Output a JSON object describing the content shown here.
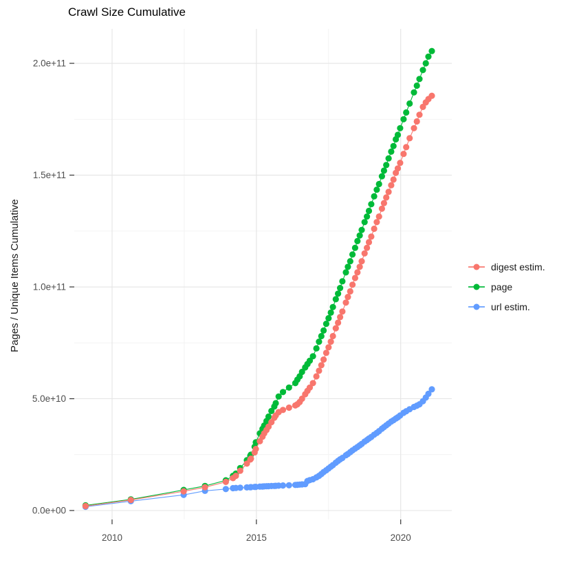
{
  "title": "Crawl Size Cumulative",
  "legend": {
    "items": [
      {
        "label": "digest estim."
      },
      {
        "label": "page"
      },
      {
        "label": "url estim."
      }
    ]
  },
  "chart_data": {
    "type": "scatter",
    "title": "Crawl Size Cumulative",
    "xlabel": "",
    "ylabel": "Pages / Unique Items Cumulative",
    "y_unit": "items; listed value × 1e9",
    "x_unit": "decimal year",
    "grid": true,
    "legend_position": "right",
    "xlim": [
      2008.69,
      2021.77
    ],
    "ylim_e9": [
      -4,
      215.4
    ],
    "x_ticks": {
      "values": [
        2010,
        2015,
        2020
      ],
      "labels": [
        "2010",
        "2015",
        "2020"
      ],
      "minor": [
        2012.5,
        2017.5
      ]
    },
    "y_ticks": {
      "values_e9": [
        0,
        50,
        100,
        150,
        200
      ],
      "labels": [
        "0.0e+00",
        "5.0e+10",
        "1.0e+11",
        "1.5e+11",
        "2.0e+11"
      ],
      "minor_e9": [
        25,
        75,
        125,
        175
      ]
    },
    "colors": {
      "grid_major": "#e4e4e4",
      "grid_minor": "#f2f2f2",
      "tick": "#333333",
      "axis_text": "#4d4d4d",
      "background": "#ffffff"
    },
    "draw_order": [
      2,
      1,
      0
    ],
    "x": [
      2009.08,
      2010.65,
      2012.48,
      2013.22,
      2013.94,
      2014.19,
      2014.29,
      2014.44,
      2014.67,
      2014.79,
      2014.81,
      2014.94,
      2014.98,
      2015.12,
      2015.21,
      2015.27,
      2015.35,
      2015.42,
      2015.52,
      2015.62,
      2015.67,
      2015.77,
      2015.92,
      2016.13,
      2016.35,
      2016.42,
      2016.5,
      2016.58,
      2016.69,
      2016.77,
      2016.85,
      2016.96,
      2017.08,
      2017.17,
      2017.25,
      2017.33,
      2017.42,
      2017.5,
      2017.58,
      2017.65,
      2017.75,
      2017.83,
      2017.9,
      2017.98,
      2018.1,
      2018.17,
      2018.25,
      2018.33,
      2018.42,
      2018.5,
      2018.58,
      2018.65,
      2018.75,
      2018.83,
      2018.9,
      2018.98,
      2019.08,
      2019.17,
      2019.25,
      2019.35,
      2019.42,
      2019.5,
      2019.58,
      2019.67,
      2019.75,
      2019.83,
      2019.9,
      2019.98,
      2020.1,
      2020.19,
      2020.31,
      2020.46,
      2020.56,
      2020.65,
      2020.77,
      2020.87,
      2020.96,
      2021.08
    ],
    "series": [
      {
        "id": "digest",
        "name": "digest estim.",
        "color": "#F8766D",
        "values_e9": [
          2.0,
          4.7,
          8.6,
          10.4,
          12.8,
          14.5,
          15.5,
          17.8,
          21.0,
          22.8,
          23.2,
          26.0,
          27.5,
          31.0,
          33.0,
          34.5,
          36.0,
          37.5,
          39.5,
          41.5,
          42.5,
          44.0,
          45.0,
          46.0,
          47.0,
          47.5,
          48.5,
          50.0,
          52.0,
          53.5,
          55.0,
          57.0,
          60.0,
          62.5,
          65.0,
          67.5,
          70.5,
          73.0,
          75.5,
          78.0,
          81.5,
          84.0,
          86.5,
          89.0,
          93.0,
          95.5,
          98.0,
          101.0,
          104.0,
          106.5,
          109.0,
          111.5,
          115.0,
          117.5,
          120.0,
          122.5,
          126.0,
          129.0,
          131.5,
          135.0,
          137.5,
          140.0,
          142.5,
          145.5,
          148.0,
          151.0,
          153.0,
          155.5,
          159.5,
          162.5,
          166.5,
          171.0,
          174.0,
          177.0,
          180.5,
          182.5,
          184.0,
          185.5
        ]
      },
      {
        "id": "page",
        "name": "page",
        "color": "#00BA38",
        "values_e9": [
          2.3,
          5.0,
          9.2,
          11.0,
          13.5,
          15.5,
          16.5,
          19.0,
          22.5,
          24.5,
          25.0,
          28.5,
          30.5,
          34.5,
          36.5,
          38.0,
          40.0,
          42.0,
          44.5,
          46.5,
          48.0,
          51.0,
          53.0,
          55.0,
          57.0,
          58.5,
          60.0,
          62.0,
          64.0,
          65.5,
          67.0,
          69.0,
          72.5,
          75.5,
          78.0,
          80.5,
          83.5,
          86.0,
          88.5,
          91.0,
          94.5,
          97.0,
          99.5,
          102.5,
          106.5,
          109.0,
          111.5,
          114.5,
          117.5,
          120.5,
          123.0,
          125.5,
          129.0,
          131.5,
          134.0,
          137.0,
          140.5,
          143.5,
          146.0,
          149.5,
          152.0,
          154.5,
          157.5,
          160.5,
          163.0,
          166.0,
          168.0,
          171.0,
          175.0,
          178.0,
          182.0,
          187.0,
          190.0,
          193.0,
          197.0,
          200.0,
          203.0,
          205.5
        ]
      },
      {
        "id": "url",
        "name": "url estim.",
        "color": "#619CFF",
        "values_e9": [
          1.7,
          4.2,
          7.0,
          8.8,
          9.6,
          10.0,
          10.1,
          10.2,
          10.35,
          10.4,
          10.45,
          10.55,
          10.6,
          10.7,
          10.75,
          10.8,
          10.85,
          10.9,
          10.95,
          11.0,
          11.05,
          11.1,
          11.2,
          11.3,
          11.45,
          11.5,
          11.6,
          11.7,
          11.8,
          13.2,
          13.6,
          14.0,
          14.8,
          15.5,
          16.3,
          17.2,
          18.0,
          18.8,
          19.6,
          20.3,
          21.4,
          22.2,
          22.9,
          23.5,
          24.7,
          25.3,
          26.1,
          26.9,
          27.7,
          28.4,
          29.1,
          29.8,
          30.8,
          31.5,
          32.2,
          32.9,
          33.9,
          34.7,
          35.5,
          36.6,
          37.3,
          38.1,
          38.9,
          39.8,
          40.4,
          41.1,
          41.7,
          42.5,
          43.7,
          44.4,
          45.3,
          46.3,
          46.9,
          47.5,
          48.9,
          50.5,
          52.2,
          54.2
        ]
      }
    ]
  }
}
